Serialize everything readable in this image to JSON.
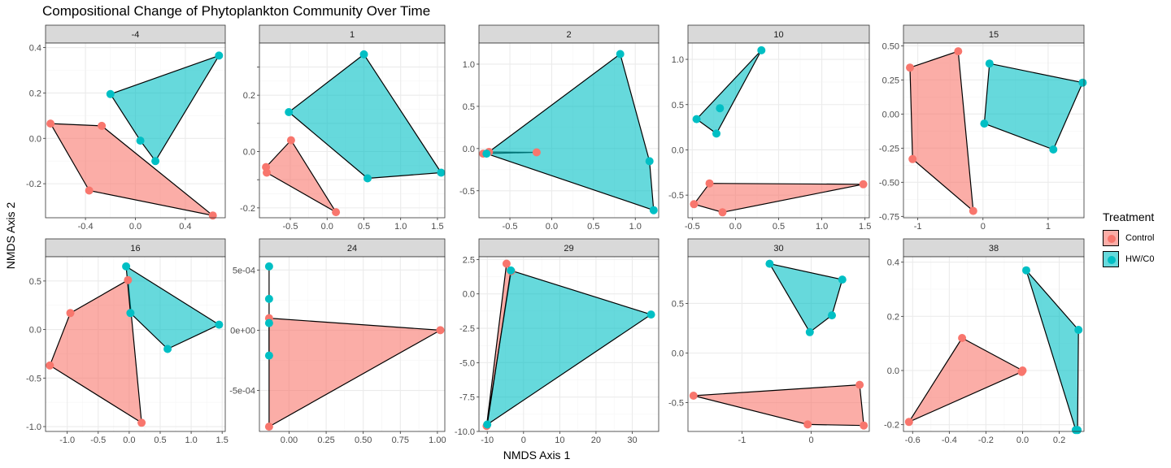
{
  "chart_title": "Compositional Change of Phytoplankton Community Over Time",
  "x_axis_label": "NMDS Axis 1",
  "y_axis_label": "NMDS Axis 2",
  "legend": {
    "title": "Treatment",
    "items": [
      {
        "label": "Control",
        "point_color": "#F8766D",
        "fill_color": "#F8766D"
      },
      {
        "label": "HW/C0",
        "point_color": "#00BFC4",
        "fill_color": "#00BFC4"
      }
    ]
  },
  "style": {
    "panel_background": "#ffffff",
    "grid_major": "#ebebeb",
    "grid_minor": "#f5f5f5",
    "strip_background": "#d9d9d9",
    "panel_border": "#333333",
    "hull_stroke": "#000000",
    "hull_fill_opacity": 0.6,
    "tick_label_color": "#4d4d4d"
  },
  "chart_data": {
    "type": "scatter",
    "facets": "treatment convex hulls per time point",
    "series_order": [
      "Control",
      "HW/C0"
    ],
    "panels": [
      {
        "label": "-4",
        "xlim": [
          -0.72,
          0.72
        ],
        "ylim": [
          -0.35,
          0.42
        ],
        "xticks": [
          -0.4,
          0.0,
          0.4
        ],
        "xtick_labels": [
          "-0.4",
          "0.0",
          "0.4"
        ],
        "yticks": [
          -0.2,
          0.0,
          0.2,
          0.4
        ],
        "ytick_labels": [
          "-0.2",
          "0.0",
          "0.2",
          "0.4"
        ],
        "Control": [
          [
            -0.68,
            0.065
          ],
          [
            -0.27,
            0.055
          ],
          [
            -0.37,
            -0.23
          ],
          [
            0.62,
            -0.34
          ]
        ],
        "HW/C0": [
          [
            -0.2,
            0.195
          ],
          [
            0.67,
            0.365
          ],
          [
            0.16,
            -0.1
          ],
          [
            0.04,
            -0.01
          ]
        ]
      },
      {
        "label": "1",
        "xlim": [
          -0.92,
          1.6
        ],
        "ylim": [
          -0.235,
          0.385
        ],
        "xticks": [
          -0.5,
          0.0,
          0.5,
          1.0,
          1.5
        ],
        "xtick_labels": [
          "-0.5",
          "0.0",
          "0.5",
          "1.0",
          "1.5"
        ],
        "yticks": [
          -0.2,
          -0.1,
          0.0,
          0.1,
          0.2,
          0.3
        ],
        "ytick_labels": [
          "-0.2",
          "",
          "0.0",
          "",
          "0.2",
          ""
        ],
        "Control": [
          [
            -0.83,
            -0.055
          ],
          [
            -0.49,
            0.04
          ],
          [
            0.12,
            -0.215
          ],
          [
            -0.82,
            -0.075
          ]
        ],
        "HW/C0": [
          [
            -0.52,
            0.14
          ],
          [
            0.5,
            0.345
          ],
          [
            1.55,
            -0.075
          ],
          [
            0.55,
            -0.095
          ]
        ]
      },
      {
        "label": "2",
        "xlim": [
          -0.87,
          1.28
        ],
        "ylim": [
          -0.82,
          1.25
        ],
        "xticks": [
          -0.5,
          0.0,
          0.5,
          1.0
        ],
        "xtick_labels": [
          "-0.5",
          "0.0",
          "0.5",
          "1.0"
        ],
        "yticks": [
          -0.5,
          0.0,
          0.5,
          1.0
        ],
        "ytick_labels": [
          "-0.5",
          "0.0",
          "0.5",
          "1.0"
        ],
        "Control": [
          [
            -0.82,
            -0.06
          ],
          [
            -0.75,
            -0.04
          ],
          [
            -0.18,
            -0.045
          ]
        ],
        "HW/C0": [
          [
            -0.78,
            -0.06
          ],
          [
            0.82,
            1.12
          ],
          [
            1.17,
            -0.15
          ],
          [
            1.22,
            -0.73
          ]
        ]
      },
      {
        "label": "10",
        "xlim": [
          -0.55,
          1.55
        ],
        "ylim": [
          -0.75,
          1.18
        ],
        "xticks": [
          -0.5,
          0.0,
          0.5,
          1.0,
          1.5
        ],
        "xtick_labels": [
          "-0.5",
          "0.0",
          "0.5",
          "1.0",
          "1.5"
        ],
        "yticks": [
          -0.5,
          0.0,
          0.5,
          1.0
        ],
        "ytick_labels": [
          "-0.5",
          "0.0",
          "0.5",
          "1.0"
        ],
        "Control": [
          [
            -0.48,
            -0.6
          ],
          [
            -0.3,
            -0.37
          ],
          [
            -0.15,
            -0.69
          ],
          [
            1.48,
            -0.38
          ]
        ],
        "HW/C0": [
          [
            -0.45,
            0.34
          ],
          [
            0.3,
            1.1
          ],
          [
            -0.18,
            0.46
          ],
          [
            -0.22,
            0.18
          ]
        ]
      },
      {
        "label": "15",
        "xlim": [
          -1.22,
          1.55
        ],
        "ylim": [
          -0.76,
          0.52
        ],
        "xticks": [
          -1,
          0,
          1
        ],
        "xtick_labels": [
          "-1",
          "0",
          "1"
        ],
        "yticks": [
          -0.75,
          -0.5,
          -0.25,
          0.0,
          0.25,
          0.5
        ],
        "ytick_labels": [
          "-0.75",
          "-0.50",
          "-0.25",
          "0.00",
          "0.25",
          "0.50"
        ],
        "Control": [
          [
            -1.12,
            0.34
          ],
          [
            -0.38,
            0.46
          ],
          [
            -0.15,
            -0.71
          ],
          [
            -1.08,
            -0.33
          ]
        ],
        "HW/C0": [
          [
            0.1,
            0.37
          ],
          [
            1.53,
            0.23
          ],
          [
            1.08,
            -0.26
          ],
          [
            0.02,
            -0.07
          ]
        ]
      },
      {
        "label": "16",
        "xlim": [
          -1.35,
          1.55
        ],
        "ylim": [
          -1.05,
          0.75
        ],
        "xticks": [
          -1.0,
          -0.5,
          0.0,
          0.5,
          1.0,
          1.5
        ],
        "xtick_labels": [
          "-1.0",
          "-0.5",
          "0.0",
          "0.5",
          "1.0",
          "1.5"
        ],
        "yticks": [
          -1.0,
          -0.5,
          0.0,
          0.5
        ],
        "ytick_labels": [
          "-1.0",
          "-0.5",
          "0.0",
          "0.5"
        ],
        "Control": [
          [
            -1.28,
            -0.37
          ],
          [
            -0.95,
            0.17
          ],
          [
            -0.02,
            0.51
          ],
          [
            0.2,
            -0.96
          ]
        ],
        "HW/C0": [
          [
            -0.05,
            0.65
          ],
          [
            1.45,
            0.05
          ],
          [
            0.62,
            -0.2
          ],
          [
            0.02,
            0.17
          ]
        ]
      },
      {
        "label": "24",
        "xlim": [
          -0.2,
          1.05
        ],
        "ylim": [
          -0.00084,
          0.00061
        ],
        "xticks": [
          0.0,
          0.25,
          0.5,
          0.75,
          1.0
        ],
        "xtick_labels": [
          "0.00",
          "0.25",
          "0.50",
          "0.75",
          "1.00"
        ],
        "yticks": [
          -0.0005,
          0.0,
          0.0005
        ],
        "ytick_labels": [
          "-5e-04",
          "0e+00",
          "5e-04"
        ],
        "Control": [
          [
            -0.135,
            0.0001
          ],
          [
            1.02,
            0.0
          ],
          [
            -0.135,
            -0.0008
          ]
        ],
        "HW/C0": [
          [
            -0.135,
            0.00053
          ],
          [
            -0.135,
            0.00026
          ],
          [
            -0.135,
            6e-05
          ],
          [
            -0.135,
            -0.00021
          ]
        ]
      },
      {
        "label": "29",
        "xlim": [
          -12.3,
          37.3
        ],
        "ylim": [
          -10.0,
          2.7
        ],
        "xticks": [
          -10,
          0,
          10,
          20,
          30
        ],
        "xtick_labels": [
          "-10",
          "0",
          "10",
          "20",
          "30"
        ],
        "yticks": [
          -10.0,
          -7.5,
          -5.0,
          -2.5,
          0.0,
          2.5
        ],
        "ytick_labels": [
          "-10.0",
          "-7.5",
          "-5.0",
          "-2.5",
          "0.0",
          "2.5"
        ],
        "Control": [
          [
            -10.2,
            -9.6
          ],
          [
            -4.7,
            2.2
          ],
          [
            -3.4,
            1.65
          ]
        ],
        "HW/C0": [
          [
            -10.0,
            -9.5
          ],
          [
            -3.5,
            1.7
          ],
          [
            35.2,
            -1.5
          ]
        ]
      },
      {
        "label": "30",
        "xlim": [
          -1.78,
          0.84
        ],
        "ylim": [
          -0.79,
          0.97
        ],
        "xticks": [
          -1,
          0
        ],
        "xtick_labels": [
          "-1",
          "0"
        ],
        "yticks": [
          -0.5,
          0.0,
          0.5
        ],
        "ytick_labels": [
          "-0.5",
          "0.0",
          "0.5"
        ],
        "Control": [
          [
            -1.7,
            -0.43
          ],
          [
            0.7,
            -0.32
          ],
          [
            0.76,
            -0.73
          ],
          [
            -0.05,
            -0.72
          ]
        ],
        "HW/C0": [
          [
            -0.6,
            0.9
          ],
          [
            0.45,
            0.74
          ],
          [
            0.3,
            0.38
          ],
          [
            -0.02,
            0.21
          ]
        ]
      },
      {
        "label": "38",
        "xlim": [
          -0.65,
          0.335
        ],
        "ylim": [
          -0.225,
          0.42
        ],
        "xticks": [
          -0.6,
          -0.4,
          -0.2,
          0.0,
          0.2
        ],
        "xtick_labels": [
          "-0.6",
          "-0.4",
          "-0.2",
          "0.0",
          "0.2"
        ],
        "yticks": [
          -0.2,
          0.0,
          0.2,
          0.4
        ],
        "ytick_labels": [
          "-0.2",
          "0.0",
          "0.2",
          "0.4"
        ],
        "Control": [
          [
            -0.62,
            -0.19
          ],
          [
            -0.33,
            0.12
          ],
          [
            0.0,
            0.0
          ],
          [
            -0.005,
            -0.005
          ]
        ],
        "HW/C0": [
          [
            0.02,
            0.37
          ],
          [
            0.305,
            0.15
          ],
          [
            0.3,
            -0.22
          ],
          [
            0.29,
            -0.22
          ]
        ]
      }
    ]
  }
}
